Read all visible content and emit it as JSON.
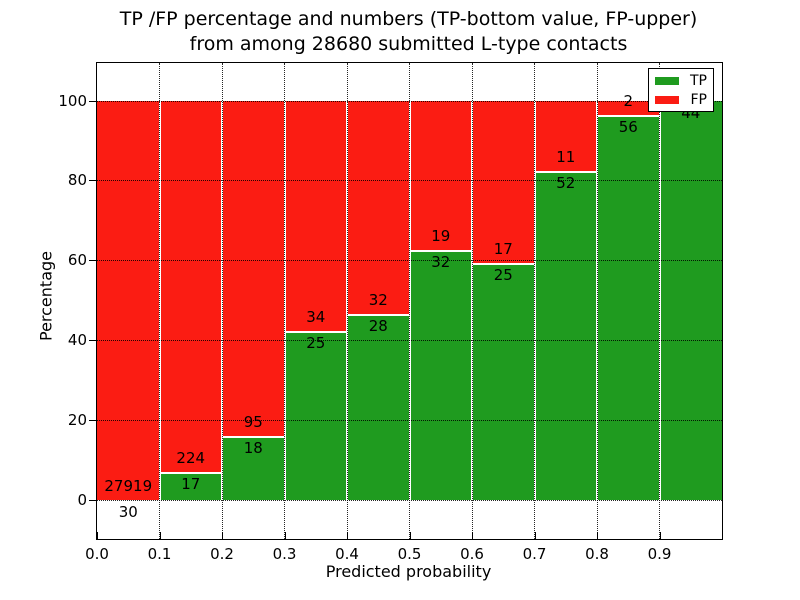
{
  "figure": {
    "title_line1": "TP /FP percentage and numbers (TP-bottom value, FP-upper)",
    "title_line2": "from among 28680 submitted L-type contacts",
    "xlabel": "Predicted probability",
    "ylabel": "Percentage"
  },
  "legend": {
    "items": [
      {
        "label": "TP",
        "color": "#1f9b1f"
      },
      {
        "label": "FP",
        "color": "#fb1c13"
      }
    ]
  },
  "colors": {
    "tp_green": "#1f9b1f",
    "fp_red": "#fb1c13",
    "axis": "#000000",
    "grid": "#000000",
    "background": "#ffffff"
  },
  "chart_data": {
    "type": "bar",
    "stacked": true,
    "normalized_to_percent": true,
    "title": "TP /FP percentage and numbers (TP-bottom value, FP-upper) from among 28680 submitted L-type contacts",
    "xlabel": "Predicted probability",
    "ylabel": "Percentage",
    "xlim": [
      0.0,
      1.0
    ],
    "ylim": [
      -10,
      110
    ],
    "grid": true,
    "legend_position": "upper right",
    "total_submitted": 28680,
    "bin_edges": [
      0.0,
      0.1,
      0.2,
      0.3,
      0.4,
      0.5,
      0.6,
      0.7,
      0.8,
      0.9,
      1.0
    ],
    "xtick_labels": [
      "0.0",
      "0.1",
      "0.2",
      "0.3",
      "0.4",
      "0.5",
      "0.6",
      "0.7",
      "0.8",
      "0.9"
    ],
    "ytick_values": [
      0,
      20,
      40,
      60,
      80,
      100
    ],
    "ytick_labels": [
      "0",
      "20",
      "40",
      "60",
      "80",
      "100"
    ],
    "series": [
      {
        "name": "TP",
        "color": "#1f9b1f",
        "counts": [
          30,
          17,
          18,
          25,
          28,
          32,
          25,
          52,
          56,
          44
        ]
      },
      {
        "name": "FP",
        "color": "#fb1c13",
        "counts": [
          27919,
          224,
          95,
          34,
          32,
          19,
          17,
          11,
          2,
          0
        ]
      }
    ],
    "tp_percent_per_bin": [
      0.11,
      7.05,
      15.93,
      42.37,
      46.67,
      62.75,
      59.52,
      82.54,
      96.55,
      100.0
    ]
  }
}
